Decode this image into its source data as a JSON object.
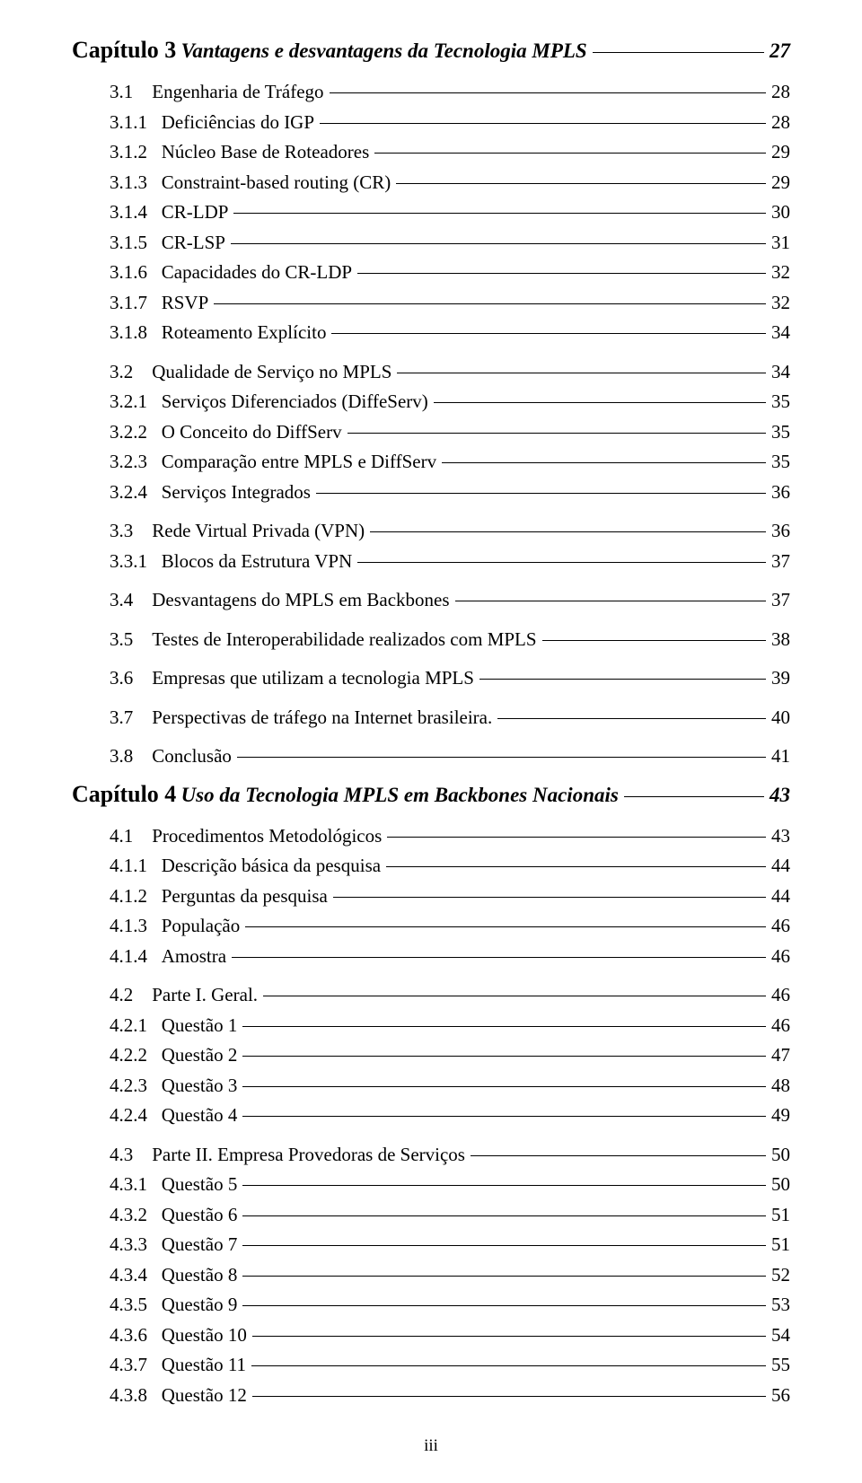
{
  "footer": "iii",
  "entries": [
    {
      "type": "chapter",
      "label": "Capítulo 3",
      "title": "Vantagens e desvantagens da Tecnologia MPLS",
      "page": "27"
    },
    {
      "type": "item",
      "level": 2,
      "num": "3.1",
      "text": "Engenharia de Tráfego",
      "page": "28",
      "gap": true
    },
    {
      "type": "item",
      "level": 3,
      "num": "3.1.1",
      "text": "Deficiências do IGP",
      "page": "28"
    },
    {
      "type": "item",
      "level": 3,
      "num": "3.1.2",
      "text": "Núcleo Base de Roteadores",
      "page": "29"
    },
    {
      "type": "item",
      "level": 3,
      "num": "3.1.3",
      "text": "Constraint-based routing (CR)",
      "page": "29"
    },
    {
      "type": "item",
      "level": 3,
      "num": "3.1.4",
      "text": "CR-LDP",
      "page": "30"
    },
    {
      "type": "item",
      "level": 3,
      "num": "3.1.5",
      "text": "CR-LSP",
      "page": "31"
    },
    {
      "type": "item",
      "level": 3,
      "num": "3.1.6",
      "text": "Capacidades do CR-LDP",
      "page": "32"
    },
    {
      "type": "item",
      "level": 3,
      "num": "3.1.7",
      "text": "RSVP",
      "page": "32"
    },
    {
      "type": "item",
      "level": 3,
      "num": "3.1.8",
      "text": "Roteamento Explícito",
      "page": "34"
    },
    {
      "type": "item",
      "level": 2,
      "num": "3.2",
      "text": "Qualidade de Serviço no MPLS",
      "page": "34",
      "gap": true
    },
    {
      "type": "item",
      "level": 3,
      "num": "3.2.1",
      "text": "Serviços Diferenciados (DiffeServ)",
      "page": "35"
    },
    {
      "type": "item",
      "level": 3,
      "num": "3.2.2",
      "text": "O Conceito do DiffServ",
      "page": "35"
    },
    {
      "type": "item",
      "level": 3,
      "num": "3.2.3",
      "text": "Comparação entre MPLS e DiffServ",
      "page": "35"
    },
    {
      "type": "item",
      "level": 3,
      "num": "3.2.4",
      "text": "Serviços Integrados",
      "page": "36"
    },
    {
      "type": "item",
      "level": 2,
      "num": "3.3",
      "text": "Rede Virtual Privada (VPN)",
      "page": "36",
      "gap": true
    },
    {
      "type": "item",
      "level": 3,
      "num": "3.3.1",
      "text": "Blocos da Estrutura VPN",
      "page": "37"
    },
    {
      "type": "item",
      "level": 2,
      "num": "3.4",
      "text": "Desvantagens do MPLS em Backbones",
      "page": "37",
      "gap": true
    },
    {
      "type": "item",
      "level": 2,
      "num": "3.5",
      "text": "Testes de Interoperabilidade realizados com MPLS",
      "page": "38",
      "gap": true
    },
    {
      "type": "item",
      "level": 2,
      "num": "3.6",
      "text": "Empresas que utilizam a tecnologia MPLS",
      "page": "39",
      "gap": true
    },
    {
      "type": "item",
      "level": 2,
      "num": "3.7",
      "text": "Perspectivas de tráfego na Internet brasileira.",
      "page": "40",
      "gap": true
    },
    {
      "type": "item",
      "level": 2,
      "num": "3.8",
      "text": "Conclusão",
      "page": "41",
      "gap": true
    },
    {
      "type": "chapter",
      "label": "Capítulo 4",
      "title": "Uso da Tecnologia MPLS em Backbones Nacionais",
      "page": "43"
    },
    {
      "type": "item",
      "level": 2,
      "num": "4.1",
      "text": "Procedimentos Metodológicos",
      "page": "43",
      "gap": true
    },
    {
      "type": "item",
      "level": 3,
      "num": "4.1.1",
      "text": "Descrição básica da pesquisa",
      "page": "44"
    },
    {
      "type": "item",
      "level": 3,
      "num": "4.1.2",
      "text": "Perguntas da pesquisa",
      "page": "44"
    },
    {
      "type": "item",
      "level": 3,
      "num": "4.1.3",
      "text": "População",
      "page": "46"
    },
    {
      "type": "item",
      "level": 3,
      "num": "4.1.4",
      "text": "Amostra",
      "page": "46"
    },
    {
      "type": "item",
      "level": 2,
      "num": "4.2",
      "text": "Parte I. Geral.",
      "page": "46",
      "gap": true
    },
    {
      "type": "item",
      "level": 3,
      "num": "4.2.1",
      "text": "Questão 1",
      "page": "46"
    },
    {
      "type": "item",
      "level": 3,
      "num": "4.2.2",
      "text": "Questão 2",
      "page": "47"
    },
    {
      "type": "item",
      "level": 3,
      "num": "4.2.3",
      "text": "Questão 3",
      "page": "48"
    },
    {
      "type": "item",
      "level": 3,
      "num": "4.2.4",
      "text": "Questão 4",
      "page": "49"
    },
    {
      "type": "item",
      "level": 2,
      "num": "4.3",
      "text": "Parte II. Empresa Provedoras de Serviços",
      "page": "50",
      "gap": true
    },
    {
      "type": "item",
      "level": 3,
      "num": "4.3.1",
      "text": "Questão 5",
      "page": "50"
    },
    {
      "type": "item",
      "level": 3,
      "num": "4.3.2",
      "text": "Questão 6",
      "page": "51"
    },
    {
      "type": "item",
      "level": 3,
      "num": "4.3.3",
      "text": "Questão 7",
      "page": "51"
    },
    {
      "type": "item",
      "level": 3,
      "num": "4.3.4",
      "text": "Questão 8",
      "page": "52"
    },
    {
      "type": "item",
      "level": 3,
      "num": "4.3.5",
      "text": "Questão 9",
      "page": "53"
    },
    {
      "type": "item",
      "level": 3,
      "num": "4.3.6",
      "text": "Questão 10",
      "page": "54"
    },
    {
      "type": "item",
      "level": 3,
      "num": "4.3.7",
      "text": "Questão 11",
      "page": "55"
    },
    {
      "type": "item",
      "level": 3,
      "num": "4.3.8",
      "text": "Questão 12",
      "page": "56"
    }
  ]
}
